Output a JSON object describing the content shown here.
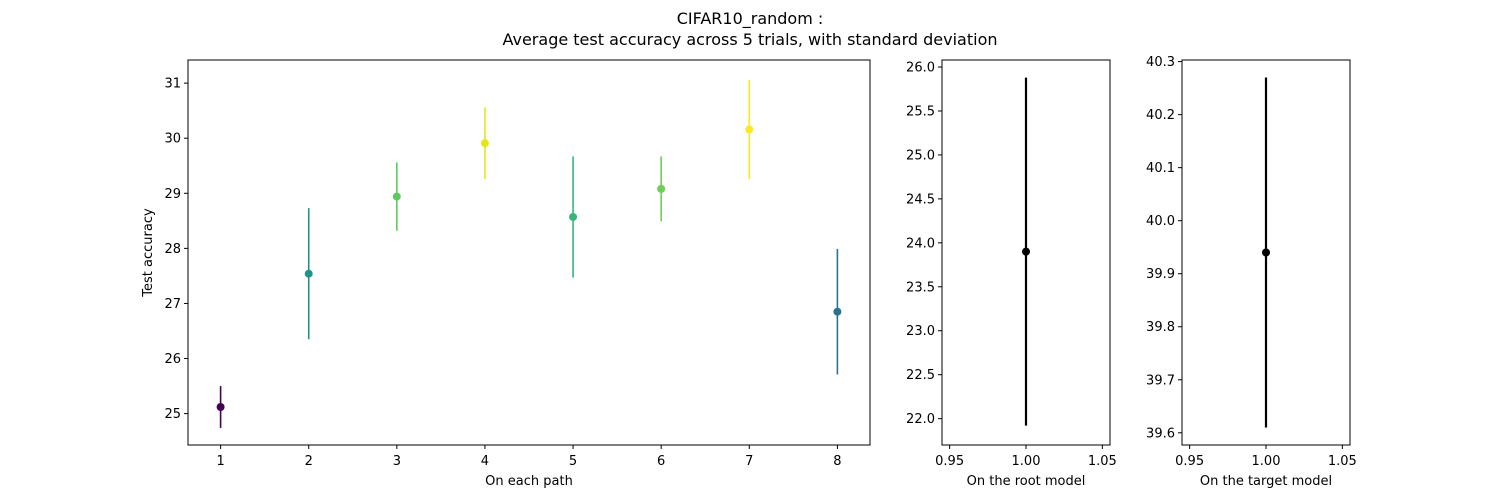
{
  "figure": {
    "title_line1": "CIFAR10_random :",
    "title_line2": "Average test accuracy across 5 trials, with standard deviation"
  },
  "chart_data": [
    {
      "type": "scatter",
      "subtype": "errorbar",
      "xlabel": "On each path",
      "ylabel": "Test accuracy",
      "xlim": [
        0.63,
        8.37
      ],
      "ylim": [
        24.43,
        31.42
      ],
      "xticks": [
        1,
        2,
        3,
        4,
        5,
        6,
        7,
        8
      ],
      "yticks": [
        25,
        26,
        27,
        28,
        29,
        30,
        31
      ],
      "grid": false,
      "colormap": "viridis",
      "points": [
        {
          "x": 1,
          "y": 25.12,
          "err": 0.38,
          "color": "#440154"
        },
        {
          "x": 2,
          "y": 27.54,
          "err": 1.19,
          "color": "#21918c"
        },
        {
          "x": 3,
          "y": 28.94,
          "err": 0.62,
          "color": "#5ec962"
        },
        {
          "x": 4,
          "y": 29.91,
          "err": 0.65,
          "color": "#e5e419"
        },
        {
          "x": 5,
          "y": 28.57,
          "err": 1.1,
          "color": "#35b779"
        },
        {
          "x": 6,
          "y": 29.08,
          "err": 0.59,
          "color": "#6ece58"
        },
        {
          "x": 7,
          "y": 30.16,
          "err": 0.9,
          "color": "#fde725"
        },
        {
          "x": 8,
          "y": 26.85,
          "err": 1.14,
          "color": "#2c728e"
        }
      ]
    },
    {
      "type": "scatter",
      "subtype": "errorbar",
      "xlabel": "On the root model",
      "ylabel": "",
      "xlim": [
        0.945,
        1.055
      ],
      "ylim": [
        21.7,
        26.08
      ],
      "xticks": [
        0.95,
        1.0,
        1.05
      ],
      "yticks": [
        22.0,
        22.5,
        23.0,
        23.5,
        24.0,
        24.5,
        25.0,
        25.5,
        26.0
      ],
      "grid": false,
      "points": [
        {
          "x": 1.0,
          "y": 23.9,
          "err": 1.98,
          "color": "#000000"
        }
      ]
    },
    {
      "type": "scatter",
      "subtype": "errorbar",
      "xlabel": "On the target model",
      "ylabel": "",
      "xlim": [
        0.945,
        1.055
      ],
      "ylim": [
        39.577,
        40.303
      ],
      "xticks": [
        0.95,
        1.0,
        1.05
      ],
      "yticks": [
        39.6,
        39.7,
        39.8,
        39.9,
        40.0,
        40.1,
        40.2,
        40.3
      ],
      "grid": false,
      "points": [
        {
          "x": 1.0,
          "y": 39.94,
          "err": 0.33,
          "color": "#000000"
        }
      ]
    }
  ]
}
